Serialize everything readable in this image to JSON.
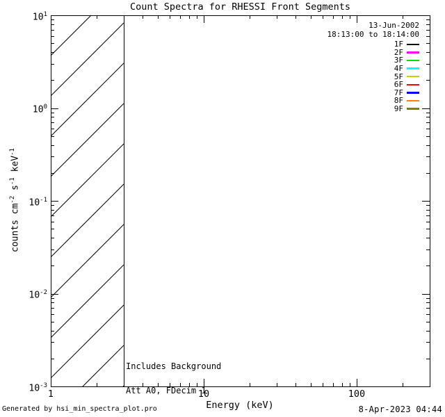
{
  "chart_data": {
    "type": "line",
    "title": "Count Spectra for RHESSI Front Segments",
    "xlabel": "Energy (keV)",
    "ylabel": "counts cm-2 s-1 keV-1",
    "ylabel_parts": [
      "counts cm",
      "-2",
      " s",
      "-1",
      " keV",
      "-1"
    ],
    "xaxis": {
      "scale": "log",
      "min": 1,
      "max": 300,
      "tick_labels": [
        "1",
        "10",
        "100"
      ]
    },
    "yaxis": {
      "scale": "log",
      "min": 0.001,
      "max": 10,
      "base": "10",
      "tick_exponents": [
        "1",
        "0",
        "-1",
        "-2",
        "-3"
      ]
    },
    "grid": false,
    "legend": {
      "position": "top-right",
      "date": "13-Jun-2002",
      "time_range": "18:13:00 to 18:14:00"
    },
    "series": [
      {
        "name": "1F",
        "color": "#000000",
        "points": []
      },
      {
        "name": "2F",
        "color": "#ff00ff",
        "points": []
      },
      {
        "name": "3F",
        "color": "#00e100",
        "points": []
      },
      {
        "name": "4F",
        "color": "#00ffff",
        "points": []
      },
      {
        "name": "5F",
        "color": "#c9cf00",
        "points": []
      },
      {
        "name": "6F",
        "color": "#ff0000",
        "points": []
      },
      {
        "name": "7F",
        "color": "#0000ff",
        "points": []
      },
      {
        "name": "8F",
        "color": "#ff8000",
        "points": []
      },
      {
        "name": "9F",
        "color": "#7f7f00",
        "points": []
      }
    ],
    "hatched_region": {
      "x_min": 1,
      "x_max": 3,
      "y_min": 0.001,
      "y_max": 10,
      "style": "diagonal-45-hatch"
    },
    "annotations": [
      "Includes Background",
      "Att A0, FDecim 1"
    ],
    "footer": {
      "left": "Generated by hsi_min_spectra_plot.pro",
      "right": "8-Apr-2023 04:44"
    }
  }
}
